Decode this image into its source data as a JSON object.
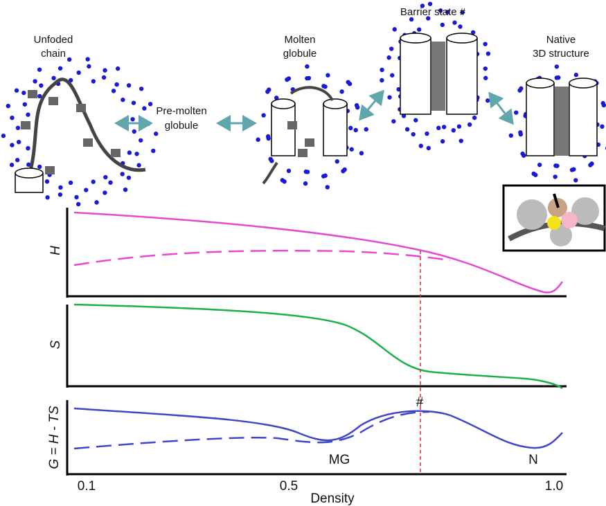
{
  "states": {
    "unfolded": [
      "Unfoded",
      "chain"
    ],
    "pre_molten": [
      "Pre-molten",
      "globule"
    ],
    "molten": [
      "Molten",
      "globule"
    ],
    "barrier": "Barrier state #",
    "native": [
      "Native",
      "3D structure"
    ]
  },
  "panels": {
    "h_label": "H",
    "s_label": "S",
    "g_label": "G = H - TS"
  },
  "annotations": {
    "barrier_mark": "#",
    "mg": "MG",
    "n": "N"
  },
  "x_axis": {
    "label": "Density",
    "ticks": [
      "0.1",
      "0.5",
      "1.0"
    ]
  }
}
